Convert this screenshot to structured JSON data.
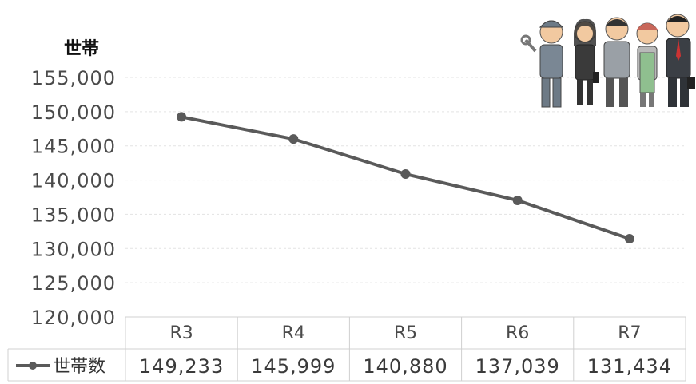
{
  "chart_data": {
    "type": "line",
    "title": "",
    "xlabel": "",
    "ylabel": "世帯",
    "categories": [
      "R3",
      "R4",
      "R5",
      "R6",
      "R7"
    ],
    "series": [
      {
        "name": "世帯数",
        "values": [
          149233,
          145999,
          140880,
          137039,
          131434
        ],
        "labels": [
          "149,233",
          "145,999",
          "140,880",
          "137,039",
          "131,434"
        ],
        "color": "#5a5a5a"
      }
    ],
    "ylim": [
      120000,
      155000
    ],
    "yticks": [
      120000,
      125000,
      130000,
      135000,
      140000,
      145000,
      150000,
      155000
    ],
    "ytick_labels": [
      "120,000",
      "125,000",
      "130,000",
      "135,000",
      "140,000",
      "145,000",
      "150,000",
      "155,000"
    ],
    "grid": true,
    "legend": "data table, bottom-left",
    "decoration_icon": "workers-group-illustration"
  }
}
